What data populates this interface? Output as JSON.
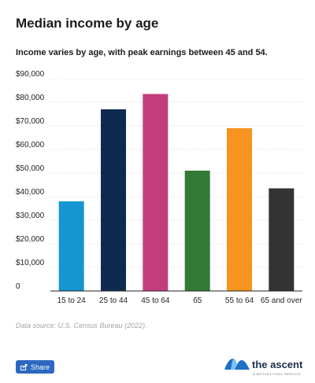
{
  "title": "Median income by age",
  "subtitle": "Income varies by age, with peak earnings between 45 and 54.",
  "source": "Data source: U.S. Census Bureau (2022).",
  "share_label": "Share",
  "brand": {
    "name": "the ascent",
    "tagline": "A MOTLEY FOOL SERVICE"
  },
  "icons": {
    "share": "share-icon",
    "logo": "ascent-logo-icon"
  },
  "chart_data": {
    "type": "bar",
    "title": "Median income by age",
    "subtitle": "Income varies by age, with peak earnings between 45 and 54.",
    "xlabel": "",
    "ylabel": "",
    "categories": [
      "15 to 24",
      "25 to 44",
      "45 to 64",
      "65",
      "55 to 64",
      "65 and over"
    ],
    "values": [
      38000,
      77000,
      83500,
      51000,
      69000,
      43500
    ],
    "colors": [
      "#1596d1",
      "#0e2b4f",
      "#c23e7c",
      "#337a37",
      "#f7931f",
      "#333333"
    ],
    "ylim": [
      0,
      90000
    ],
    "yticks": [
      0,
      10000,
      20000,
      30000,
      40000,
      50000,
      60000,
      70000,
      80000,
      90000
    ],
    "ytick_labels": [
      "0",
      "$10,000",
      "$20,000",
      "$30,000",
      "$40,000",
      "$50,000",
      "$60,000",
      "$70,000",
      "$80,000",
      "$90,000"
    ],
    "grid": true,
    "legend": "none"
  }
}
